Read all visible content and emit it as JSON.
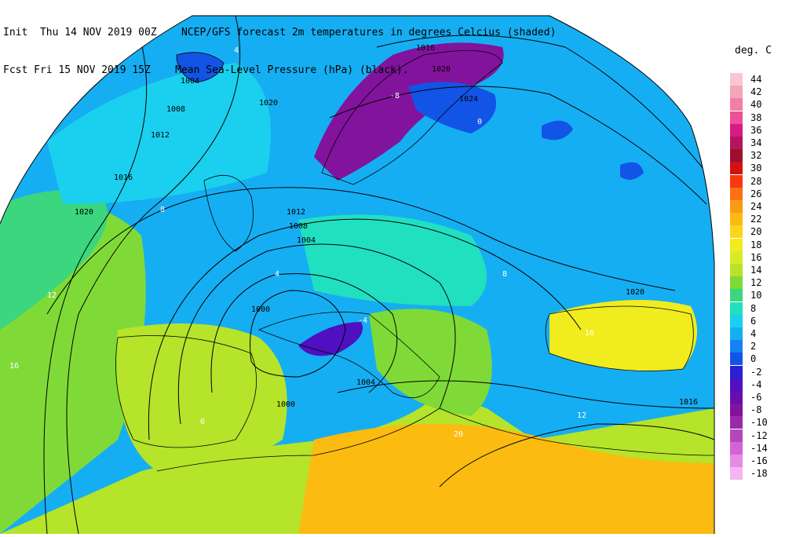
{
  "header": {
    "line1": "Init  Thu 14 NOV 2019 00Z    NCEP/GFS forecast 2m temperatures in degrees Celcius (shaded)",
    "line2": "Fcst Fri 15 NOV 2019 15Z    Mean Sea-Level Pressure (hPa) (black)."
  },
  "legend": {
    "title": "deg. C",
    "items": [
      {
        "label": "44",
        "color": "#f9c7cf"
      },
      {
        "label": "42",
        "color": "#f5a5b8"
      },
      {
        "label": "40",
        "color": "#f27fa4"
      },
      {
        "label": "38",
        "color": "#ef4f96"
      },
      {
        "label": "36",
        "color": "#d61c83"
      },
      {
        "label": "34",
        "color": "#b4145e"
      },
      {
        "label": "32",
        "color": "#9c0f2e"
      },
      {
        "label": "30",
        "color": "#d51010"
      },
      {
        "label": "28",
        "color": "#f73810"
      },
      {
        "label": "26",
        "color": "#fb7013"
      },
      {
        "label": "24",
        "color": "#fb9b12"
      },
      {
        "label": "22",
        "color": "#fbbb10"
      },
      {
        "label": "20",
        "color": "#fbd51b"
      },
      {
        "label": "18",
        "color": "#f0ec1e"
      },
      {
        "label": "16",
        "color": "#d6ed25"
      },
      {
        "label": "14",
        "color": "#b5e42a"
      },
      {
        "label": "12",
        "color": "#7fda38"
      },
      {
        "label": "10",
        "color": "#3bd67e"
      },
      {
        "label": "8",
        "color": "#21e0c0"
      },
      {
        "label": "6",
        "color": "#1ad0ee"
      },
      {
        "label": "4",
        "color": "#16aef2"
      },
      {
        "label": "2",
        "color": "#1482f0"
      },
      {
        "label": "0",
        "color": "#1255e6"
      },
      {
        "label": "-2",
        "color": "#2a1fd4"
      },
      {
        "label": "-4",
        "color": "#4e10c1"
      },
      {
        "label": "-6",
        "color": "#6a0eab"
      },
      {
        "label": "-8",
        "color": "#82139c"
      },
      {
        "label": "-10",
        "color": "#9b2aa8"
      },
      {
        "label": "-12",
        "color": "#b547bd"
      },
      {
        "label": "-14",
        "color": "#d066d2"
      },
      {
        "label": "-16",
        "color": "#e58be4"
      },
      {
        "label": "-18",
        "color": "#f5b5f2"
      }
    ]
  },
  "isobar_labels": [
    "1016",
    "1020",
    "1024",
    "1004",
    "1008",
    "1012",
    "1020",
    "1016",
    "1020",
    "1012",
    "1008",
    "1004",
    "1000",
    "1000",
    "1004",
    "1020",
    "1016"
  ],
  "temp_labels": [
    "4",
    "4",
    "8",
    "8",
    "12",
    "12",
    "16",
    "16",
    "20",
    "0",
    "-8",
    "6",
    "-4"
  ]
}
